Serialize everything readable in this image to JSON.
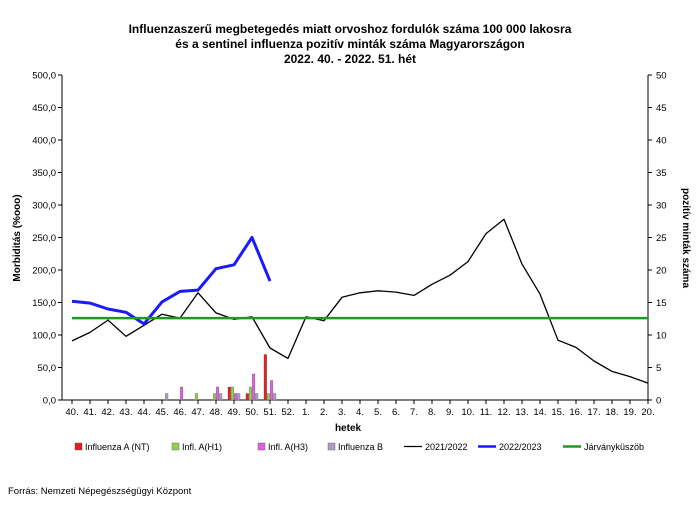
{
  "chart_data": {
    "type": "line",
    "title_lines": [
      "Influenzaszerű megbetegedés miatt orvoshoz fordulók száma 100 000 lakosra",
      "és a sentinel influenza pozitív minták száma Magyarországon",
      "2022. 40. - 2022. 51. hét"
    ],
    "xlabel": "hetek",
    "ylabel_left": "Morbiditás (%ooo)",
    "ylabel_right": "pozitív minták száma",
    "ylim_left": [
      0,
      500
    ],
    "ylim_right": [
      0,
      50
    ],
    "yticks_left": [
      "0,0",
      "50,0",
      "100,0",
      "150,0",
      "200,0",
      "250,0",
      "300,0",
      "350,0",
      "400,0",
      "450,0",
      "500,0"
    ],
    "yticks_right": [
      "0",
      "5",
      "10",
      "15",
      "20",
      "25",
      "30",
      "35",
      "40",
      "45",
      "50"
    ],
    "categories": [
      "40.",
      "41.",
      "42.",
      "43.",
      "44.",
      "45.",
      "46.",
      "47.",
      "48.",
      "49.",
      "50.",
      "51.",
      "52.",
      "1.",
      "2.",
      "3.",
      "4.",
      "5.",
      "6.",
      "7.",
      "8.",
      "9.",
      "10.",
      "11.",
      "12.",
      "13.",
      "14.",
      "15.",
      "16.",
      "17.",
      "18.",
      "19.",
      "20."
    ],
    "line_series": [
      {
        "name": "2021/2022",
        "color": "#000000",
        "width": 1.3,
        "values": [
          91,
          104,
          123,
          98,
          115,
          132,
          126,
          165,
          134,
          124,
          128,
          80,
          64,
          128,
          122,
          158,
          165,
          168,
          166,
          161,
          178,
          192,
          213,
          256,
          278,
          209,
          163,
          92,
          81,
          60,
          44,
          36,
          26
        ]
      },
      {
        "name": "2022/2023",
        "color": "#1a1aff",
        "width": 3,
        "values": [
          152,
          149,
          140,
          135,
          117,
          151,
          167,
          169,
          202,
          208,
          250,
          183,
          null,
          null,
          null,
          null,
          null,
          null,
          null,
          null,
          null,
          null,
          null,
          null,
          null,
          null,
          null,
          null,
          null,
          null,
          null,
          null,
          null
        ]
      },
      {
        "name": "Járványküszöb",
        "color": "#1e9a1e",
        "width": 2.5,
        "values": [
          126,
          126,
          126,
          126,
          126,
          126,
          126,
          126,
          126,
          126,
          126,
          126,
          126,
          126,
          126,
          126,
          126,
          126,
          126,
          126,
          126,
          126,
          126,
          126,
          126,
          126,
          126,
          126,
          126,
          126,
          126,
          126,
          126
        ]
      }
    ],
    "bar_series": [
      {
        "name": "Influenza A (NT)",
        "color": "#e02020",
        "values": [
          0,
          0,
          0,
          0,
          0,
          0,
          0,
          0,
          0,
          2,
          1,
          7
        ]
      },
      {
        "name": "Infl. A(H1)",
        "color": "#8fd14f",
        "values": [
          0,
          0,
          0,
          0,
          0,
          0,
          0,
          1,
          1,
          2,
          2,
          1
        ]
      },
      {
        "name": "Infl. A(H3)",
        "color": "#e060e0",
        "values": [
          0,
          0,
          0,
          0,
          0,
          0,
          2,
          0,
          2,
          1,
          4,
          3
        ]
      },
      {
        "name": "Influenza B",
        "color": "#b09cc8",
        "values": [
          0,
          0,
          0,
          0,
          0,
          1,
          0,
          0,
          1,
          1,
          1,
          1
        ]
      }
    ],
    "legend": [
      {
        "label": "Influenza A (NT)",
        "kind": "bar",
        "color": "#e02020"
      },
      {
        "label": "Infl. A(H1)",
        "kind": "bar",
        "color": "#8fd14f"
      },
      {
        "label": "Infl. A(H3)",
        "kind": "bar",
        "color": "#e060e0"
      },
      {
        "label": "Influenza B",
        "kind": "bar",
        "color": "#b09cc8"
      },
      {
        "label": "2021/2022",
        "kind": "line",
        "color": "#000000"
      },
      {
        "label": "2022/2023",
        "kind": "line",
        "color": "#1a1aff"
      },
      {
        "label": "Járványküszöb",
        "kind": "line",
        "color": "#1e9a1e"
      }
    ],
    "legend_position": "bottom",
    "grid": false
  },
  "source": "Forrás: Nemzeti Népegészségügyi Központ"
}
